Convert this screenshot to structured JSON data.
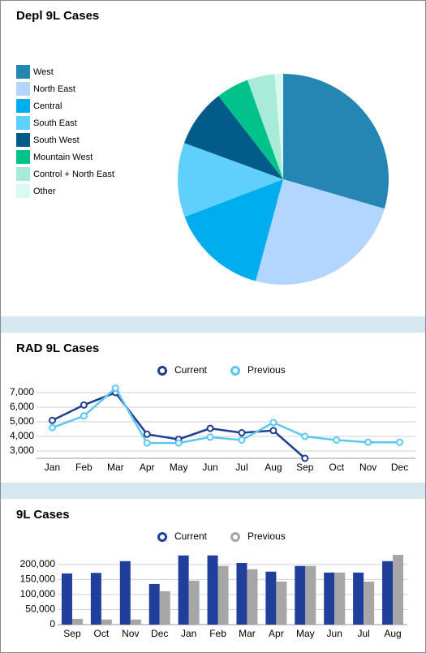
{
  "chart_data": [
    {
      "type": "pie",
      "title": "Depl 9L Cases",
      "categories": [
        "West",
        "North East",
        "Central",
        "South East",
        "South West",
        "Mountain West",
        "Control + North East",
        "Other"
      ],
      "values": [
        29.5,
        24.7,
        15,
        11.4,
        8.9,
        5,
        4.2,
        1.3
      ],
      "colors": [
        "#2586b3",
        "#b3d6ff",
        "#00adef",
        "#5fd0fb",
        "#035b8a",
        "#00c28a",
        "#a9ebd9",
        "#d9faf0"
      ]
    },
    {
      "type": "line",
      "title": "RAD 9L Cases",
      "categories": [
        "Jan",
        "Feb",
        "Mar",
        "Apr",
        "May",
        "Jun",
        "Jul",
        "Aug",
        "Sep",
        "Oct",
        "Nov",
        "Dec"
      ],
      "series": [
        {
          "name": "Current",
          "color": "#1f3f8f",
          "values": [
            5100,
            6150,
            7000,
            4150,
            3800,
            4550,
            4250,
            4400,
            2500,
            null,
            null,
            null
          ]
        },
        {
          "name": "Previous",
          "color": "#5bc8f0",
          "values": [
            4600,
            5400,
            7300,
            3550,
            3550,
            3950,
            3750,
            4950,
            4000,
            3750,
            3600,
            3600
          ]
        }
      ],
      "ylim": [
        2500,
        7500
      ],
      "yticks": [
        {
          "value": 3000,
          "label": "3,000"
        },
        {
          "value": 4000,
          "label": "4,000"
        },
        {
          "value": 5000,
          "label": "5,000"
        },
        {
          "value": 6000,
          "label": "6,000"
        },
        {
          "value": 7000,
          "label": "7,000"
        }
      ],
      "grid": true
    },
    {
      "type": "bar",
      "title": "9L Cases",
      "categories": [
        "Sep",
        "Oct",
        "Nov",
        "Dec",
        "Jan",
        "Feb",
        "Mar",
        "Apr",
        "May",
        "Jun",
        "Jul",
        "Aug"
      ],
      "series": [
        {
          "name": "Current",
          "color": "#1f3f9a",
          "values": [
            170000,
            172000,
            211000,
            135000,
            230000,
            230000,
            205000,
            176000,
            195000,
            173000,
            173000,
            211000
          ]
        },
        {
          "name": "Previous",
          "color": "#a6a6a6",
          "values": [
            19000,
            17000,
            17000,
            111000,
            146000,
            195000,
            184000,
            143000,
            195000,
            173000,
            143000,
            232000
          ]
        }
      ],
      "ylim": [
        0,
        240000
      ],
      "yticks": [
        0,
        {
          "value": 50000,
          "label": "50,000"
        },
        {
          "value": 100000,
          "label": "100,000"
        },
        {
          "value": 150000,
          "label": "150,000"
        },
        {
          "value": 200000,
          "label": "200,000"
        }
      ],
      "grid": true
    }
  ]
}
